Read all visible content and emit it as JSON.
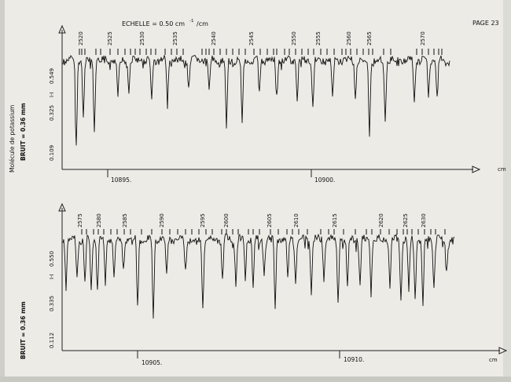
{
  "page": {
    "label": "PAGE 23",
    "scale": "ECHELLE = 0.50 cm",
    "scale_sup": "-1",
    "scale_tail": "/cm"
  },
  "side": {
    "molecule": "Molécule de potassium",
    "noise_top": "BRUIT = 0.36 mm",
    "noise_bottom": "BRUIT = 0.36 mm"
  },
  "panels": [
    {
      "axis_unit": "cm",
      "y_ticks": [
        "0.549",
        "I-I",
        "0.325",
        "0.109"
      ],
      "x_ticks": [
        "10895.",
        "10900."
      ],
      "line_labels": [
        "2520",
        "2525",
        "2530",
        "2535",
        "2540",
        "2545",
        "2550",
        "2555",
        "2560",
        "2565",
        "2570"
      ]
    },
    {
      "axis_unit": "cm",
      "y_ticks": [
        "0.550",
        "I-I",
        "0.335",
        "0.112"
      ],
      "x_ticks": [
        "10905.",
        "10910."
      ],
      "line_labels": [
        "2575",
        "2580",
        "2585",
        "2590",
        "2595",
        "2600",
        "2605",
        "2610",
        "2615",
        "2620",
        "2625",
        "2630"
      ]
    }
  ]
}
